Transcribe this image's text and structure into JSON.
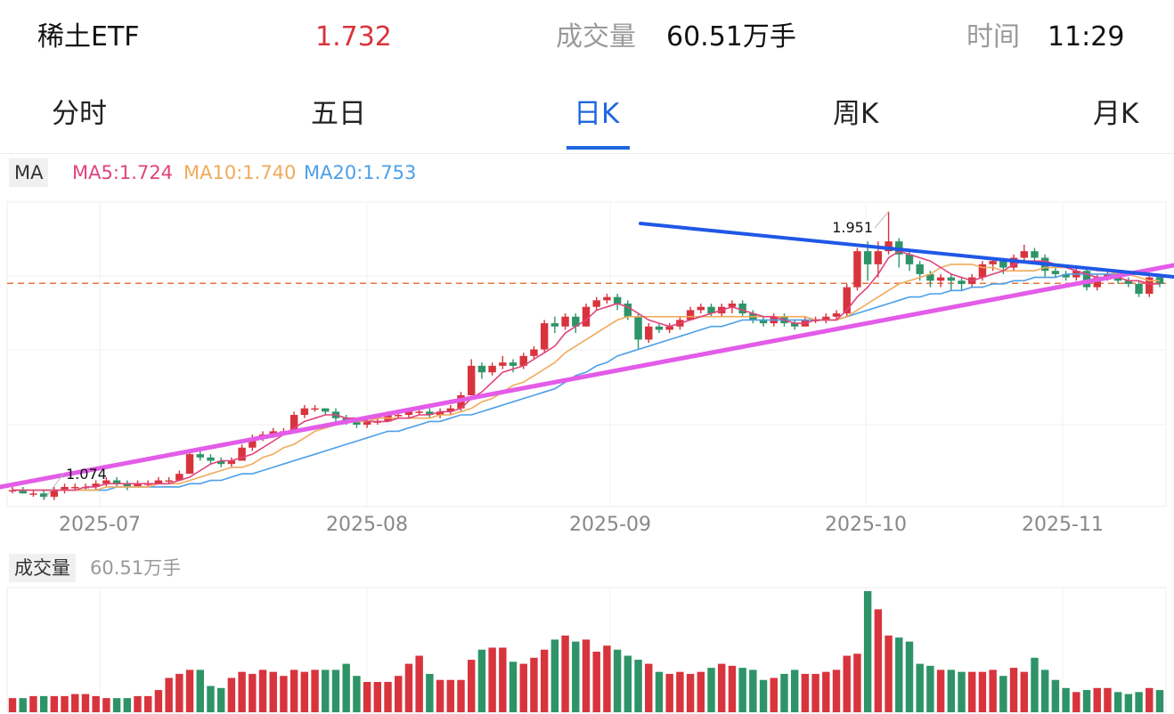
{
  "header": {
    "name": "稀土ETF",
    "price": "1.732",
    "volume_label": "成交量",
    "volume_value": "60.51万手",
    "time_label": "时间",
    "time_value": "11:29"
  },
  "tabs": [
    "分时",
    "五日",
    "日K",
    "周K",
    "月K"
  ],
  "active_tab": "日K",
  "ma": {
    "tag": "MA",
    "ma5": "MA5:1.724",
    "ma10": "MA10:1.740",
    "ma20": "MA20:1.753"
  },
  "volume_panel": {
    "tag": "成交量",
    "value": "60.51万手"
  },
  "colors": {
    "up": "#d8343d",
    "down": "#2e9468",
    "accent": "#1f66e0",
    "ma5": "#e0437d",
    "ma10": "#f1aa5b",
    "ma20": "#4d9fe8",
    "trend_upper": "#2057e6",
    "trend_lower": "#e35ce8",
    "ref_line": "#e8743a"
  },
  "chart_data": {
    "type": "candlestick",
    "x_ticks": [
      "2025-07",
      "2025-08",
      "2025-09",
      "2025-10",
      "2025-11"
    ],
    "max_label": "1.951",
    "min_label": "1.074",
    "candles": [
      [
        1.1,
        1.1,
        1.11,
        1.09
      ],
      [
        1.1,
        1.09,
        1.11,
        1.09
      ],
      [
        1.09,
        1.09,
        1.1,
        1.08
      ],
      [
        1.09,
        1.08,
        1.1,
        1.07
      ],
      [
        1.08,
        1.1,
        1.11,
        1.07
      ],
      [
        1.1,
        1.11,
        1.12,
        1.09
      ],
      [
        1.11,
        1.11,
        1.12,
        1.1
      ],
      [
        1.11,
        1.11,
        1.12,
        1.1
      ],
      [
        1.11,
        1.12,
        1.13,
        1.1
      ],
      [
        1.12,
        1.13,
        1.14,
        1.11
      ],
      [
        1.13,
        1.12,
        1.14,
        1.11
      ],
      [
        1.12,
        1.11,
        1.13,
        1.1
      ],
      [
        1.11,
        1.12,
        1.13,
        1.11
      ],
      [
        1.12,
        1.12,
        1.13,
        1.11
      ],
      [
        1.12,
        1.13,
        1.14,
        1.12
      ],
      [
        1.13,
        1.13,
        1.14,
        1.12
      ],
      [
        1.13,
        1.15,
        1.16,
        1.13
      ],
      [
        1.15,
        1.21,
        1.22,
        1.15
      ],
      [
        1.21,
        1.2,
        1.23,
        1.19
      ],
      [
        1.2,
        1.19,
        1.21,
        1.18
      ],
      [
        1.19,
        1.18,
        1.2,
        1.17
      ],
      [
        1.18,
        1.19,
        1.2,
        1.17
      ],
      [
        1.19,
        1.23,
        1.24,
        1.19
      ],
      [
        1.23,
        1.26,
        1.27,
        1.22
      ],
      [
        1.26,
        1.27,
        1.28,
        1.25
      ],
      [
        1.27,
        1.28,
        1.29,
        1.26
      ],
      [
        1.28,
        1.28,
        1.29,
        1.27
      ],
      [
        1.28,
        1.33,
        1.34,
        1.28
      ],
      [
        1.33,
        1.35,
        1.36,
        1.32
      ],
      [
        1.35,
        1.35,
        1.36,
        1.34
      ],
      [
        1.35,
        1.34,
        1.35,
        1.33
      ],
      [
        1.34,
        1.32,
        1.35,
        1.31
      ],
      [
        1.32,
        1.31,
        1.33,
        1.3
      ],
      [
        1.31,
        1.3,
        1.32,
        1.29
      ],
      [
        1.3,
        1.31,
        1.32,
        1.29
      ],
      [
        1.31,
        1.31,
        1.32,
        1.3
      ],
      [
        1.31,
        1.33,
        1.34,
        1.31
      ],
      [
        1.33,
        1.33,
        1.34,
        1.32
      ],
      [
        1.33,
        1.34,
        1.35,
        1.32
      ],
      [
        1.34,
        1.34,
        1.35,
        1.33
      ],
      [
        1.34,
        1.33,
        1.35,
        1.32
      ],
      [
        1.33,
        1.34,
        1.35,
        1.32
      ],
      [
        1.34,
        1.35,
        1.36,
        1.33
      ],
      [
        1.35,
        1.39,
        1.4,
        1.34
      ],
      [
        1.39,
        1.48,
        1.5,
        1.39
      ],
      [
        1.48,
        1.46,
        1.49,
        1.44
      ],
      [
        1.46,
        1.48,
        1.49,
        1.45
      ],
      [
        1.48,
        1.49,
        1.51,
        1.47
      ],
      [
        1.49,
        1.48,
        1.5,
        1.46
      ],
      [
        1.48,
        1.51,
        1.52,
        1.47
      ],
      [
        1.51,
        1.53,
        1.54,
        1.5
      ],
      [
        1.53,
        1.61,
        1.62,
        1.52
      ],
      [
        1.61,
        1.6,
        1.63,
        1.58
      ],
      [
        1.6,
        1.63,
        1.64,
        1.59
      ],
      [
        1.63,
        1.6,
        1.64,
        1.58
      ],
      [
        1.6,
        1.66,
        1.67,
        1.6
      ],
      [
        1.66,
        1.68,
        1.69,
        1.65
      ],
      [
        1.68,
        1.69,
        1.7,
        1.67
      ],
      [
        1.69,
        1.67,
        1.7,
        1.65
      ],
      [
        1.67,
        1.63,
        1.68,
        1.62
      ],
      [
        1.63,
        1.56,
        1.64,
        1.53
      ],
      [
        1.56,
        1.6,
        1.61,
        1.55
      ],
      [
        1.6,
        1.59,
        1.61,
        1.58
      ],
      [
        1.59,
        1.6,
        1.61,
        1.58
      ],
      [
        1.6,
        1.62,
        1.63,
        1.59
      ],
      [
        1.62,
        1.65,
        1.66,
        1.62
      ],
      [
        1.65,
        1.66,
        1.67,
        1.64
      ],
      [
        1.66,
        1.64,
        1.67,
        1.63
      ],
      [
        1.64,
        1.66,
        1.67,
        1.63
      ],
      [
        1.66,
        1.67,
        1.68,
        1.64
      ],
      [
        1.67,
        1.64,
        1.68,
        1.63
      ],
      [
        1.64,
        1.62,
        1.65,
        1.61
      ],
      [
        1.62,
        1.61,
        1.63,
        1.6
      ],
      [
        1.61,
        1.63,
        1.64,
        1.6
      ],
      [
        1.63,
        1.61,
        1.64,
        1.6
      ],
      [
        1.61,
        1.6,
        1.62,
        1.59
      ],
      [
        1.6,
        1.62,
        1.63,
        1.6
      ],
      [
        1.62,
        1.62,
        1.63,
        1.61
      ],
      [
        1.62,
        1.63,
        1.64,
        1.61
      ],
      [
        1.63,
        1.64,
        1.65,
        1.62
      ],
      [
        1.64,
        1.72,
        1.73,
        1.63
      ],
      [
        1.72,
        1.83,
        1.84,
        1.71
      ],
      [
        1.83,
        1.79,
        1.86,
        1.74
      ],
      [
        1.79,
        1.83,
        1.86,
        1.75
      ],
      [
        1.83,
        1.86,
        1.951,
        1.82
      ],
      [
        1.86,
        1.82,
        1.87,
        1.78
      ],
      [
        1.82,
        1.79,
        1.83,
        1.77
      ],
      [
        1.79,
        1.76,
        1.8,
        1.74
      ],
      [
        1.76,
        1.74,
        1.77,
        1.72
      ],
      [
        1.74,
        1.75,
        1.76,
        1.72
      ],
      [
        1.75,
        1.74,
        1.76,
        1.71
      ],
      [
        1.74,
        1.73,
        1.75,
        1.71
      ],
      [
        1.73,
        1.75,
        1.76,
        1.72
      ],
      [
        1.75,
        1.79,
        1.8,
        1.74
      ],
      [
        1.79,
        1.8,
        1.81,
        1.77
      ],
      [
        1.8,
        1.78,
        1.81,
        1.76
      ],
      [
        1.78,
        1.81,
        1.82,
        1.77
      ],
      [
        1.81,
        1.83,
        1.85,
        1.8
      ],
      [
        1.83,
        1.81,
        1.84,
        1.79
      ],
      [
        1.81,
        1.77,
        1.82,
        1.75
      ],
      [
        1.77,
        1.76,
        1.78,
        1.75
      ],
      [
        1.76,
        1.75,
        1.77,
        1.74
      ],
      [
        1.75,
        1.77,
        1.78,
        1.74
      ],
      [
        1.77,
        1.72,
        1.78,
        1.71
      ],
      [
        1.72,
        1.75,
        1.76,
        1.71
      ],
      [
        1.75,
        1.76,
        1.77,
        1.74
      ],
      [
        1.76,
        1.74,
        1.77,
        1.73
      ],
      [
        1.74,
        1.73,
        1.75,
        1.72
      ],
      [
        1.73,
        1.7,
        1.74,
        1.69
      ],
      [
        1.7,
        1.75,
        1.76,
        1.69
      ],
      [
        1.75,
        1.73,
        1.76,
        1.72
      ]
    ],
    "volumes": [
      0.07,
      0.07,
      0.08,
      0.08,
      0.08,
      0.08,
      0.09,
      0.09,
      0.08,
      0.07,
      0.07,
      0.07,
      0.08,
      0.08,
      0.11,
      0.17,
      0.19,
      0.21,
      0.21,
      0.13,
      0.12,
      0.17,
      0.2,
      0.19,
      0.21,
      0.2,
      0.18,
      0.21,
      0.2,
      0.21,
      0.21,
      0.21,
      0.24,
      0.18,
      0.15,
      0.15,
      0.15,
      0.18,
      0.24,
      0.28,
      0.19,
      0.16,
      0.16,
      0.16,
      0.26,
      0.31,
      0.32,
      0.32,
      0.25,
      0.24,
      0.27,
      0.31,
      0.36,
      0.38,
      0.35,
      0.36,
      0.3,
      0.33,
      0.31,
      0.28,
      0.26,
      0.24,
      0.2,
      0.19,
      0.2,
      0.19,
      0.2,
      0.22,
      0.24,
      0.23,
      0.22,
      0.21,
      0.16,
      0.17,
      0.19,
      0.21,
      0.19,
      0.19,
      0.2,
      0.21,
      0.28,
      0.29,
      0.6,
      0.51,
      0.38,
      0.37,
      0.35,
      0.24,
      0.23,
      0.21,
      0.21,
      0.2,
      0.2,
      0.2,
      0.21,
      0.18,
      0.22,
      0.2,
      0.27,
      0.21,
      0.16,
      0.12,
      0.1,
      0.11,
      0.12,
      0.12,
      0.1,
      0.09,
      0.1,
      0.12,
      0.11
    ],
    "ma5": [
      1.1,
      1.1,
      1.1,
      1.1,
      1.1,
      1.1,
      1.1,
      1.11,
      1.11,
      1.12,
      1.12,
      1.12,
      1.12,
      1.12,
      1.12,
      1.12,
      1.13,
      1.14,
      1.16,
      1.18,
      1.19,
      1.19,
      1.2,
      1.21,
      1.23,
      1.25,
      1.27,
      1.29,
      1.31,
      1.32,
      1.33,
      1.33,
      1.32,
      1.32,
      1.31,
      1.31,
      1.31,
      1.32,
      1.32,
      1.33,
      1.33,
      1.34,
      1.34,
      1.35,
      1.38,
      1.4,
      1.43,
      1.46,
      1.47,
      1.48,
      1.5,
      1.52,
      1.54,
      1.58,
      1.6,
      1.62,
      1.65,
      1.66,
      1.67,
      1.66,
      1.64,
      1.62,
      1.61,
      1.6,
      1.61,
      1.62,
      1.63,
      1.64,
      1.65,
      1.66,
      1.65,
      1.64,
      1.63,
      1.63,
      1.62,
      1.61,
      1.61,
      1.62,
      1.62,
      1.62,
      1.65,
      1.69,
      1.72,
      1.76,
      1.81,
      1.83,
      1.82,
      1.81,
      1.8,
      1.78,
      1.76,
      1.75,
      1.74,
      1.75,
      1.76,
      1.77,
      1.79,
      1.8,
      1.8,
      1.8,
      1.79,
      1.78,
      1.77,
      1.76,
      1.75,
      1.75,
      1.75,
      1.74,
      1.74,
      1.73,
      1.73
    ],
    "ma10": [
      1.1,
      1.1,
      1.1,
      1.1,
      1.1,
      1.1,
      1.1,
      1.1,
      1.1,
      1.11,
      1.11,
      1.11,
      1.11,
      1.11,
      1.12,
      1.12,
      1.12,
      1.13,
      1.14,
      1.15,
      1.16,
      1.17,
      1.17,
      1.18,
      1.2,
      1.21,
      1.23,
      1.24,
      1.26,
      1.28,
      1.29,
      1.3,
      1.31,
      1.31,
      1.31,
      1.32,
      1.32,
      1.32,
      1.32,
      1.32,
      1.32,
      1.33,
      1.33,
      1.34,
      1.35,
      1.37,
      1.38,
      1.4,
      1.42,
      1.43,
      1.45,
      1.47,
      1.49,
      1.52,
      1.54,
      1.56,
      1.58,
      1.6,
      1.62,
      1.63,
      1.63,
      1.63,
      1.63,
      1.63,
      1.63,
      1.63,
      1.63,
      1.63,
      1.63,
      1.63,
      1.63,
      1.63,
      1.63,
      1.63,
      1.63,
      1.63,
      1.63,
      1.62,
      1.62,
      1.62,
      1.63,
      1.65,
      1.67,
      1.69,
      1.71,
      1.73,
      1.74,
      1.75,
      1.76,
      1.78,
      1.79,
      1.79,
      1.79,
      1.78,
      1.78,
      1.77,
      1.77,
      1.77,
      1.77,
      1.78,
      1.78,
      1.78,
      1.78,
      1.78,
      1.77,
      1.77,
      1.76,
      1.76,
      1.75,
      1.74,
      1.74
    ],
    "ma20": [
      1.1,
      1.1,
      1.1,
      1.1,
      1.1,
      1.1,
      1.1,
      1.1,
      1.1,
      1.1,
      1.11,
      1.11,
      1.11,
      1.11,
      1.11,
      1.11,
      1.11,
      1.12,
      1.12,
      1.13,
      1.13,
      1.14,
      1.15,
      1.15,
      1.16,
      1.17,
      1.18,
      1.19,
      1.2,
      1.21,
      1.22,
      1.23,
      1.24,
      1.25,
      1.26,
      1.27,
      1.28,
      1.28,
      1.29,
      1.3,
      1.31,
      1.31,
      1.32,
      1.33,
      1.33,
      1.34,
      1.35,
      1.36,
      1.37,
      1.38,
      1.39,
      1.4,
      1.41,
      1.43,
      1.45,
      1.46,
      1.48,
      1.49,
      1.51,
      1.52,
      1.53,
      1.54,
      1.55,
      1.56,
      1.57,
      1.58,
      1.59,
      1.6,
      1.6,
      1.61,
      1.62,
      1.62,
      1.62,
      1.62,
      1.62,
      1.62,
      1.62,
      1.62,
      1.62,
      1.62,
      1.63,
      1.64,
      1.65,
      1.66,
      1.67,
      1.68,
      1.69,
      1.69,
      1.7,
      1.7,
      1.71,
      1.71,
      1.72,
      1.72,
      1.73,
      1.73,
      1.74,
      1.74,
      1.75,
      1.75,
      1.75,
      1.76,
      1.76,
      1.76,
      1.76,
      1.76,
      1.76,
      1.76,
      1.76,
      1.76,
      1.75
    ],
    "ref_price": 1.732,
    "y_range": [
      1.05,
      1.98
    ]
  }
}
